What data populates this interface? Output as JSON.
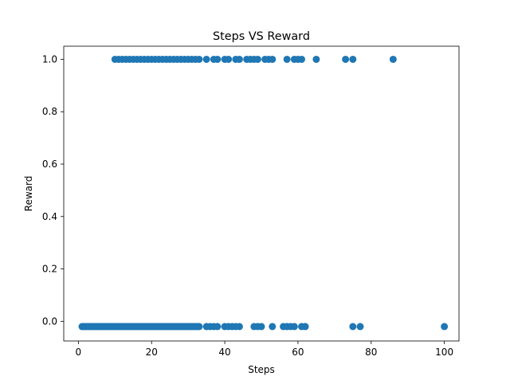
{
  "chart_data": {
    "type": "scatter",
    "title": "Steps VS Reward",
    "xlabel": "Steps",
    "ylabel": "Reward",
    "xlim": [
      -4.0,
      104.0
    ],
    "ylim": [
      -0.075,
      1.05
    ],
    "xticks": [
      0,
      20,
      40,
      60,
      80,
      100
    ],
    "yticks": [
      0.0,
      0.2,
      0.4,
      0.6,
      0.8,
      1.0
    ],
    "xtick_labels": [
      "0",
      "20",
      "40",
      "60",
      "80",
      "100"
    ],
    "ytick_labels": [
      "0.0",
      "0.2",
      "0.4",
      "0.6",
      "0.8",
      "1.0"
    ],
    "grid": false,
    "color": "#1f77b4",
    "series": [
      {
        "reward": 1.0,
        "x": [
          10,
          11,
          12,
          13,
          14,
          15,
          16,
          17,
          18,
          19,
          20,
          21,
          22,
          23,
          24,
          25,
          26,
          27,
          28,
          29,
          30,
          31,
          32,
          33,
          35,
          37,
          38,
          40,
          41,
          43,
          44,
          46,
          47,
          48,
          49,
          51,
          52,
          53,
          57,
          59,
          60,
          61,
          65,
          73,
          75,
          86
        ]
      },
      {
        "reward": -0.02,
        "x": [
          1,
          1.5,
          2,
          2.5,
          3,
          3.5,
          4,
          4.5,
          5,
          5.5,
          6,
          6.5,
          7,
          7.5,
          8,
          8.5,
          9,
          9.5,
          10,
          10.5,
          11,
          11.5,
          12,
          12.5,
          13,
          13.5,
          14,
          14.5,
          15,
          15.5,
          16,
          16.5,
          17,
          17.5,
          18,
          18.5,
          19,
          19.5,
          20,
          20.5,
          21,
          21.5,
          22,
          22.5,
          23,
          23.5,
          24,
          24.5,
          25,
          25.5,
          26,
          26.5,
          27,
          27.5,
          28,
          28.5,
          29,
          29.5,
          30,
          30.5,
          31,
          31.5,
          32,
          32.5,
          33,
          35,
          36,
          37,
          38,
          40,
          41,
          42,
          43,
          44,
          48,
          49,
          50,
          53,
          56,
          57,
          58,
          59,
          61,
          62,
          75,
          77,
          100
        ]
      }
    ]
  }
}
